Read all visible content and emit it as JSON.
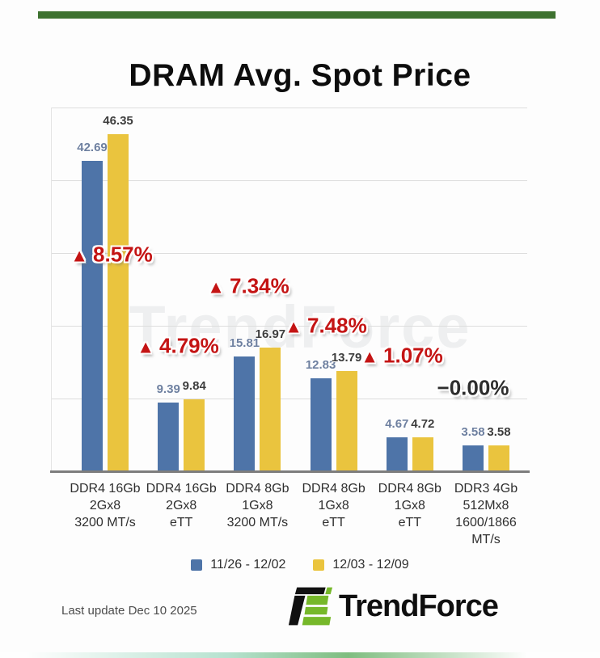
{
  "page": {
    "title": "DRAM Avg. Spot Price",
    "last_update": "Last update Dec 10 2025",
    "brand": "TrendForce",
    "watermark": "TrendForce"
  },
  "colors": {
    "top_bar_green": "#3e7230",
    "series1_blue": "#4e74a8",
    "series2_yellow": "#eac43e",
    "value_label_series1": "#6e80a0",
    "value_label_series2": "#3d3d3d",
    "annotation_up_red": "#c41414",
    "annotation_flat_dark": "#2d2d2d",
    "logo_green": "#76b82a",
    "logo_black": "#111111"
  },
  "chart_data": {
    "type": "bar",
    "title": "DRAM Avg. Spot Price",
    "categories": [
      [
        "DDR4 16Gb",
        "2Gx8",
        "3200 MT/s"
      ],
      [
        "DDR4 16Gb",
        "2Gx8",
        "eTT"
      ],
      [
        "DDR4 8Gb",
        "1Gx8",
        "3200 MT/s"
      ],
      [
        "DDR4 8Gb",
        "1Gx8",
        "eTT"
      ],
      [
        "DDR4 8Gb",
        "1Gx8",
        "eTT"
      ],
      [
        "DDR3 4Gb",
        "512Mx8",
        "1600/1866",
        "MT/s"
      ]
    ],
    "series": [
      {
        "name": "11/26 - 12/02",
        "color": "#4e74a8",
        "values": [
          42.69,
          9.39,
          15.81,
          12.83,
          4.67,
          3.58
        ]
      },
      {
        "name": "12/03 - 12/09",
        "color": "#eac43e",
        "values": [
          46.35,
          9.84,
          16.97,
          13.79,
          4.72,
          3.58
        ]
      }
    ],
    "annotations": [
      {
        "label": "8.57%",
        "direction": "up"
      },
      {
        "label": "4.79%",
        "direction": "up"
      },
      {
        "label": "7.34%",
        "direction": "up"
      },
      {
        "label": "7.48%",
        "direction": "up"
      },
      {
        "label": "1.07%",
        "direction": "up"
      },
      {
        "label": "0.00%",
        "direction": "flat",
        "prefix": "−"
      }
    ],
    "ylim": [
      0,
      50
    ],
    "gridline_values": [
      10,
      20,
      30,
      40,
      50
    ],
    "grid": true,
    "legend_position": "bottom"
  }
}
